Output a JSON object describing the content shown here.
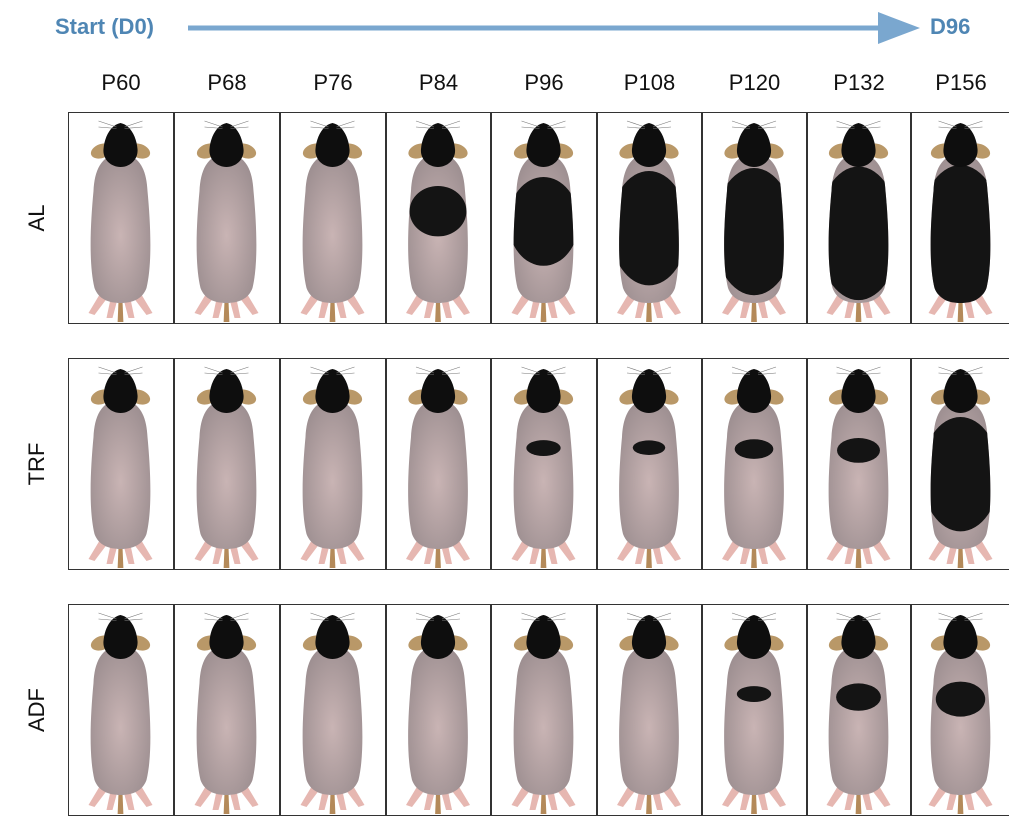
{
  "timeline": {
    "start_label": "Start (D0)",
    "end_label": "D96",
    "arrow_color": "#7aa7cf"
  },
  "columns": [
    "P60",
    "P68",
    "P76",
    "P84",
    "P96",
    "P108",
    "P120",
    "P132",
    "P156"
  ],
  "rows": [
    {
      "label": "AL",
      "coverage": [
        0,
        0,
        0,
        0.3,
        0.6,
        0.8,
        0.9,
        0.95,
        1.0
      ]
    },
    {
      "label": "TRF",
      "coverage": [
        0,
        0,
        0,
        0,
        0.03,
        0.02,
        0.06,
        0.1,
        0.8
      ]
    },
    {
      "label": "ADF",
      "coverage": [
        0,
        0,
        0,
        0,
        0,
        0,
        0.03,
        0.12,
        0.18
      ]
    }
  ],
  "colors": {
    "pink_skin": "#c9b4b4",
    "shadow_skin": "#9c8e90",
    "black_fur": "#141414",
    "ear": "#b99868",
    "feet": "#e6b7b1",
    "border": "#333333"
  }
}
